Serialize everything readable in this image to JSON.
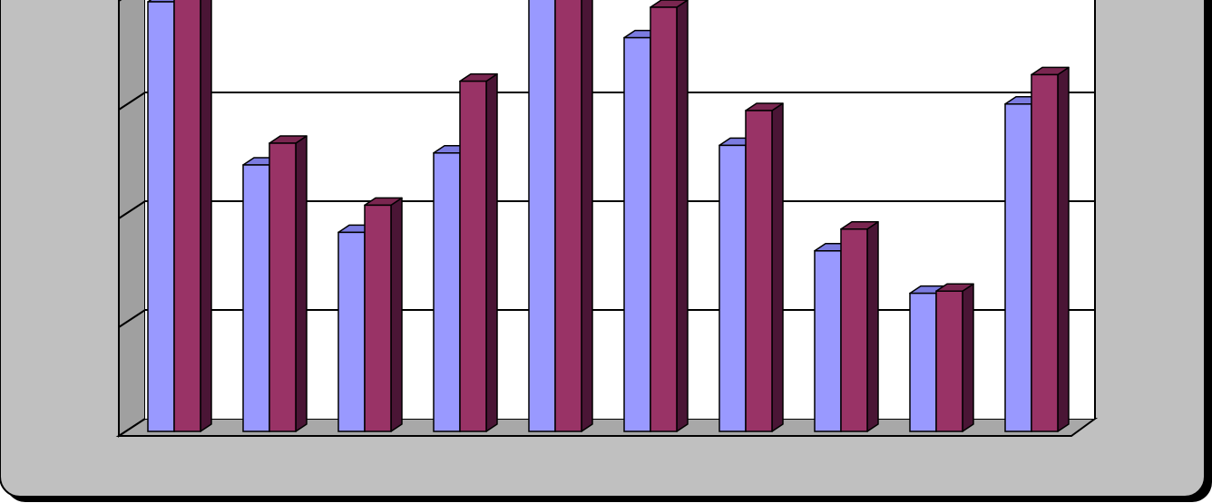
{
  "chart_data": {
    "type": "bar",
    "style": "3d-clustered",
    "categories": [
      "",
      "",
      "",
      "",
      "",
      "",
      "",
      "",
      "",
      ""
    ],
    "series": [
      {
        "values": [
          395,
          245,
          183,
          256,
          418,
          362,
          263,
          166,
          127,
          301
        ]
      },
      {
        "values": [
          415,
          265,
          208,
          322,
          416,
          390,
          295,
          186,
          129,
          328
        ]
      }
    ],
    "ylim": [
      0,
      400
    ],
    "yticks": [
      0,
      100,
      200,
      300,
      400
    ],
    "grid": true,
    "legend": "none",
    "colors": {
      "series": [
        "#9999FF",
        "#993366"
      ],
      "series_dark": [
        "#6E6EC8",
        "#4A1535"
      ],
      "series_top": [
        "#7B7BE0",
        "#7A2650"
      ],
      "plot_area": "#FFFFFF",
      "wall": "#A0A0A0",
      "floor": "#A8A8A8",
      "frame": "#C0C0C0",
      "outline": "#000000"
    }
  }
}
